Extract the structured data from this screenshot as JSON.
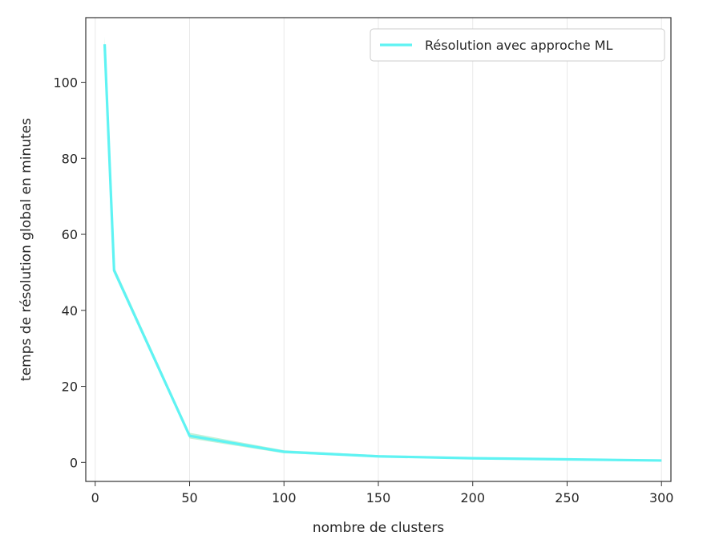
{
  "chart_data": {
    "type": "line",
    "title": "",
    "xlabel": "nombre de clusters",
    "ylabel": "temps de résolution global en minutes",
    "xlim": [
      -5,
      305
    ],
    "ylim": [
      -5,
      117
    ],
    "xticks": [
      0,
      50,
      100,
      150,
      200,
      250,
      300
    ],
    "yticks": [
      0,
      20,
      40,
      60,
      80,
      100
    ],
    "xtick_labels": [
      "0",
      "50",
      "100",
      "150",
      "200",
      "250",
      "300"
    ],
    "ytick_labels": [
      "0",
      "20",
      "40",
      "60",
      "80",
      "100"
    ],
    "grid": "vertical",
    "legend_position": "top-right",
    "series": [
      {
        "name": "Résolution avec approche ML",
        "color": "#5ff3f3",
        "x": [
          5,
          10,
          50,
          100,
          150,
          200,
          250,
          300
        ],
        "values": [
          110,
          50.5,
          7,
          2.8,
          1.6,
          1.1,
          0.8,
          0.5
        ],
        "band_low": [
          109,
          50,
          6.3,
          2.4,
          1.4,
          1.0,
          0.7,
          0.4
        ],
        "band_high": [
          112,
          51.5,
          7.8,
          3.2,
          1.9,
          1.3,
          0.9,
          0.6
        ]
      }
    ]
  }
}
